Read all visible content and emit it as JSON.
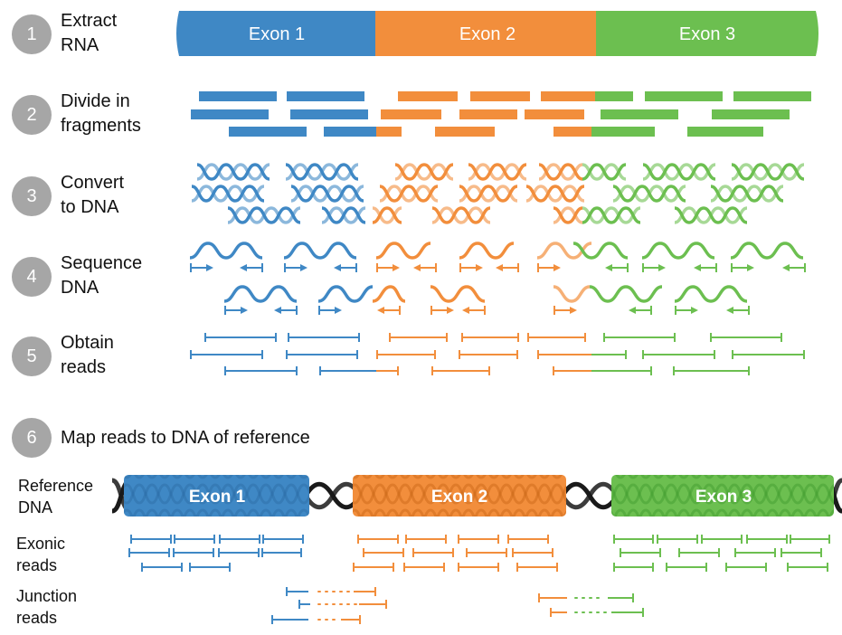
{
  "steps": [
    {
      "number": "1",
      "label": "Extract\nRNA"
    },
    {
      "number": "2",
      "label": "Divide in\nfragments"
    },
    {
      "number": "3",
      "label": "Convert\nto DNA"
    },
    {
      "number": "4",
      "label": "Sequence\nDNA"
    },
    {
      "number": "5",
      "label": "Obtain\nreads"
    },
    {
      "number": "6",
      "label": "Map reads to DNA of reference"
    }
  ],
  "exons": [
    "Exon 1",
    "Exon 2",
    "Exon 3"
  ],
  "reference_exons": [
    "Exon 1",
    "Exon 2",
    "Exon 3"
  ],
  "row_labels": {
    "reference": "Reference\nDNA",
    "exonic": "Exonic\nreads",
    "junction": "Junction\nreads"
  },
  "colors": {
    "exon1": "#3f88c5",
    "exon2": "#f28e3c",
    "exon3": "#6cbf50",
    "circle": "#a6a6a6",
    "backbone": "#1a1a1a"
  }
}
